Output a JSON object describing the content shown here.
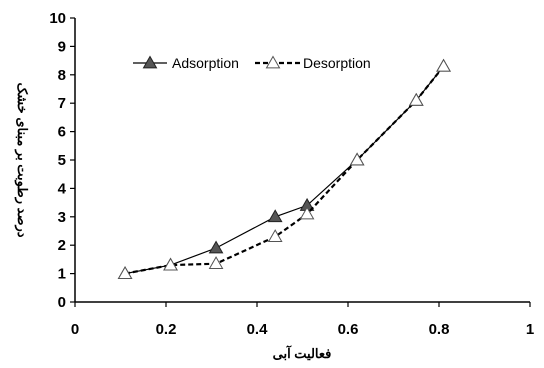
{
  "chart_data": {
    "type": "line",
    "xlabel": "فعالیت آبی",
    "ylabel": "درصد رطوبت بر مبنای خشک",
    "xlim": [
      0,
      1
    ],
    "ylim": [
      0,
      10
    ],
    "x_ticks": [
      "0",
      "0.2",
      "0.4",
      "0.6",
      "0.8",
      "1"
    ],
    "y_ticks": [
      "0",
      "1",
      "2",
      "3",
      "4",
      "5",
      "6",
      "7",
      "8",
      "9",
      "10"
    ],
    "grid": false,
    "legend_position": "top-left",
    "series": [
      {
        "name": "Adsorption",
        "style": "solid",
        "marker": "filled-triangle",
        "color": "#000000",
        "points": [
          [
            0.11,
            1.0
          ],
          [
            0.21,
            1.3
          ],
          [
            0.31,
            1.9
          ],
          [
            0.44,
            3.0
          ],
          [
            0.51,
            3.4
          ],
          [
            0.62,
            5.0
          ],
          [
            0.75,
            7.1
          ],
          [
            0.81,
            8.3
          ]
        ]
      },
      {
        "name": "Desorption",
        "style": "dashed",
        "marker": "open-triangle",
        "color": "#000000",
        "points": [
          [
            0.11,
            1.0
          ],
          [
            0.21,
            1.3
          ],
          [
            0.31,
            1.35
          ],
          [
            0.44,
            2.3
          ],
          [
            0.51,
            3.1
          ],
          [
            0.62,
            5.0
          ],
          [
            0.75,
            7.1
          ],
          [
            0.81,
            8.3
          ]
        ]
      }
    ]
  }
}
